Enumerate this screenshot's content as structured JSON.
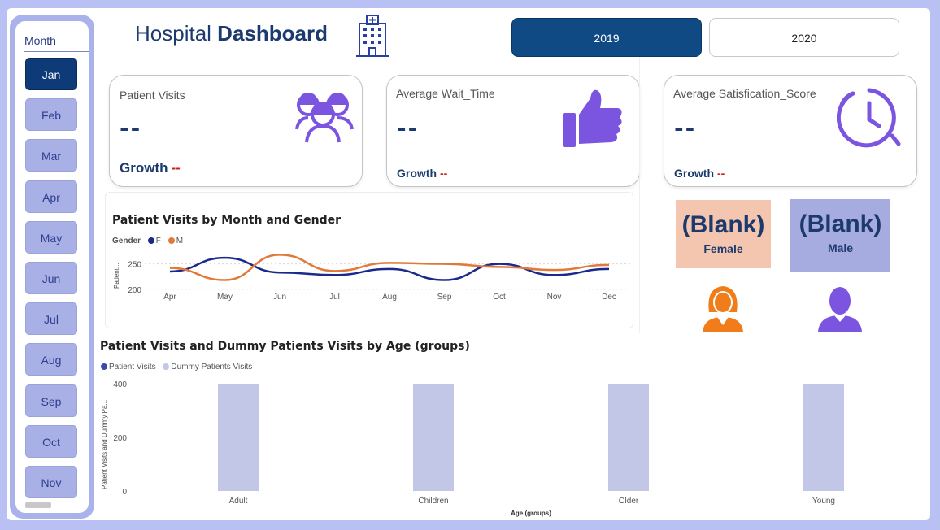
{
  "slicer": {
    "title": "Month",
    "months": [
      "Jan",
      "Feb",
      "Mar",
      "Apr",
      "May",
      "Jun",
      "Jul",
      "Aug",
      "Sep",
      "Oct",
      "Nov"
    ],
    "selected": "Jan"
  },
  "header": {
    "title_light": "Hospital",
    "title_bold": "Dashboard",
    "years": [
      "2019",
      "2020"
    ],
    "selected_year": "2019"
  },
  "kpis": {
    "visits": {
      "label": "Patient Visits",
      "value": "--",
      "growth_label": "Growth",
      "growth_value": "--"
    },
    "wait": {
      "label": "Average Wait_Time",
      "value": "--",
      "growth_label": "Growth",
      "growth_value": "--"
    },
    "satisfaction": {
      "label": "Average Satisfication_Score",
      "value": "--",
      "growth_label": "Growth",
      "growth_value": "--"
    }
  },
  "gender_cards": {
    "female": {
      "value": "(Blank)",
      "label": "Female"
    },
    "male": {
      "value": "(Blank)",
      "label": "Male"
    }
  },
  "colors": {
    "accent": "#0f4a85",
    "icon_purple": "#7b55e0",
    "female_orange": "#f07d1a",
    "series_f": "#1a2a8c",
    "series_m": "#e07a3a",
    "bar_dummy": "#c2c7e8",
    "bar_visits": "#3d4aa8"
  },
  "line_chart": {
    "title": "Patient Visits by Month and Gender",
    "legend_title": "Gender",
    "series_names": [
      "F",
      "M"
    ],
    "ylabel": "Patient...",
    "ticks_y": [
      "250",
      "200"
    ]
  },
  "bar_chart": {
    "title": "Patient Visits and Dummy Patients Visits by Age (groups)",
    "legend": [
      "Patient Visits",
      "Dummy Patients Visits"
    ],
    "ylabel": "Patient Visits and Dummy Pa...",
    "xlabel": "Age (groups)",
    "ticks_y": [
      "400",
      "200",
      "0"
    ]
  },
  "chart_data": [
    {
      "type": "line",
      "title": "Patient Visits by Month and Gender",
      "x": [
        "Apr",
        "May",
        "Jun",
        "Jul",
        "Aug",
        "Sep",
        "Oct",
        "Nov",
        "Dec"
      ],
      "series": [
        {
          "name": "F",
          "values": [
            235,
            262,
            233,
            228,
            240,
            218,
            250,
            228,
            240
          ]
        },
        {
          "name": "M",
          "values": [
            242,
            218,
            268,
            236,
            252,
            250,
            244,
            238,
            248
          ]
        }
      ],
      "ylabel": "Patient...",
      "ylim": [
        190,
        275
      ],
      "yticks": [
        200,
        250
      ],
      "grid": true,
      "legend": "top-left"
    },
    {
      "type": "bar",
      "title": "Patient Visits and Dummy Patients Visits by Age (groups)",
      "categories": [
        "Adult",
        "Children",
        "Older",
        "Young"
      ],
      "series": [
        {
          "name": "Patient Visits",
          "values": [
            0,
            0,
            0,
            0
          ]
        },
        {
          "name": "Dummy Patients Visits",
          "values": [
            400,
            400,
            400,
            400
          ]
        }
      ],
      "xlabel": "Age (groups)",
      "ylabel": "Patient Visits and Dummy Pa...",
      "ylim": [
        0,
        420
      ],
      "yticks": [
        0,
        200,
        400
      ],
      "legend": "top-left"
    }
  ]
}
